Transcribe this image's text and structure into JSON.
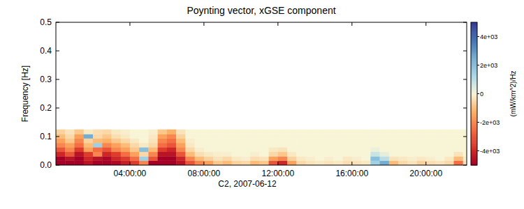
{
  "chart_data": {
    "type": "heatmap",
    "title": "Poynting vector, xGSE component",
    "x_label": "C2, 2007-06-12",
    "y_label": "Frequency [Hz]",
    "xlim": [
      0,
      22.2
    ],
    "xticks": [
      {
        "value": 4,
        "label": "04:00:00"
      },
      {
        "value": 8,
        "label": "08:00:00"
      },
      {
        "value": 12,
        "label": "12:00:00"
      },
      {
        "value": 16,
        "label": "16:00:00"
      },
      {
        "value": 20,
        "label": "20:00:00"
      }
    ],
    "ylim": [
      0,
      0.5
    ],
    "yticks": [
      {
        "value": 0,
        "label": "0.0"
      },
      0.1,
      0.2,
      0.3,
      0.4,
      0.5
    ],
    "cells": {
      "x_edges": [
        0,
        0.5,
        1,
        1.5,
        2,
        2.5,
        3,
        3.5,
        4,
        4.5,
        5,
        5.5,
        6,
        6.5,
        7,
        7.5,
        8,
        8.5,
        9,
        9.5,
        10,
        10.5,
        11,
        11.5,
        12,
        12.5,
        13,
        13.5,
        14,
        14.5,
        15,
        15.5,
        16,
        16.5,
        17,
        17.5,
        18,
        18.5,
        19,
        19.5,
        20,
        20.5,
        21,
        21.5,
        22,
        22.2
      ],
      "y_edges": [
        0,
        0.016,
        0.031,
        0.047,
        0.063,
        0.078,
        0.094,
        0.109,
        0.125
      ],
      "values": [
        [
          -5000,
          -5000,
          -5000,
          -4500,
          -5000,
          -5000,
          -4800,
          -4200,
          -3500,
          -2000,
          -5000,
          -5000,
          -5000,
          -4500,
          -3000,
          -2000,
          -1500,
          -800,
          -1000,
          -600,
          -500,
          -1000,
          -800,
          -3000,
          -4000,
          -1500,
          -500,
          -300,
          -200,
          -300,
          -200,
          -400,
          -300,
          -200,
          1500,
          2500,
          -1000,
          -500,
          -300,
          -600,
          -400,
          -300,
          -500,
          -2500,
          -300
        ],
        [
          -5000,
          -4500,
          -5000,
          -4000,
          -4500,
          -4800,
          -4000,
          -3500,
          -2500,
          1500,
          -3000,
          -5000,
          -5000,
          -4000,
          -2000,
          -1000,
          -600,
          -300,
          -500,
          -200,
          -100,
          -400,
          -300,
          -1500,
          -2000,
          -600,
          -200,
          -100,
          0,
          -100,
          0,
          -200,
          -100,
          0,
          2000,
          1000,
          -300,
          -200,
          -100,
          -200,
          -100,
          0,
          -200,
          -1000,
          -100
        ],
        [
          -4000,
          -3000,
          -4500,
          -3500,
          -2000,
          -4000,
          -3500,
          -2500,
          -1500,
          -500,
          -2000,
          -4500,
          -4500,
          -3000,
          -1000,
          -400,
          -200,
          -100,
          -100,
          0,
          0,
          -100,
          0,
          -500,
          -800,
          -200,
          0,
          0,
          0,
          0,
          0,
          0,
          0,
          0,
          800,
          300,
          0,
          0,
          0,
          0,
          0,
          0,
          0,
          -300,
          0
        ],
        [
          -3000,
          -2000,
          -3500,
          -1500,
          -2500,
          -3000,
          -2000,
          -1500,
          -800,
          2000,
          -1000,
          -3500,
          -4000,
          -2000,
          -500,
          -100,
          0,
          0,
          0,
          0,
          0,
          0,
          0,
          -200,
          -300,
          0,
          0,
          0,
          0,
          0,
          0,
          0,
          0,
          0,
          200,
          0,
          0,
          0,
          0,
          0,
          0,
          0,
          0,
          0,
          0
        ],
        [
          -2000,
          -1500,
          -2500,
          -1000,
          1500,
          -2000,
          -1500,
          -1000,
          -500,
          -200,
          -500,
          -2500,
          -3000,
          -1500,
          -200,
          0,
          0,
          0,
          0,
          0,
          0,
          0,
          0,
          0,
          0,
          0,
          0,
          0,
          0,
          0,
          0,
          0,
          0,
          0,
          0,
          0,
          0,
          0,
          0,
          0,
          0,
          0,
          0,
          0,
          0
        ],
        [
          -1500,
          -800,
          -2000,
          -600,
          -1000,
          -1200,
          -800,
          -500,
          -200,
          0,
          -300,
          -2000,
          -2500,
          -1000,
          -100,
          0,
          0,
          0,
          0,
          0,
          0,
          0,
          0,
          0,
          0,
          0,
          0,
          0,
          0,
          0,
          0,
          0,
          0,
          0,
          0,
          0,
          0,
          0,
          0,
          0,
          0,
          0,
          0,
          0,
          0
        ],
        [
          -1000,
          -500,
          -1500,
          2500,
          -500,
          -800,
          -400,
          -200,
          0,
          0,
          -200,
          -1500,
          -2000,
          -600,
          0,
          0,
          0,
          0,
          0,
          0,
          0,
          0,
          0,
          0,
          0,
          0,
          0,
          0,
          0,
          0,
          0,
          0,
          0,
          0,
          0,
          0,
          0,
          0,
          0,
          0,
          0,
          0,
          0,
          0,
          0
        ],
        [
          -600,
          -300,
          -800,
          -200,
          -400,
          -500,
          -200,
          -100,
          0,
          0,
          -100,
          -800,
          -1200,
          -300,
          0,
          0,
          0,
          0,
          0,
          0,
          0,
          0,
          0,
          0,
          0,
          0,
          0,
          0,
          0,
          0,
          0,
          0,
          0,
          0,
          0,
          0,
          0,
          0,
          0,
          0,
          0,
          0,
          0,
          0,
          0
        ]
      ]
    },
    "colorbar": {
      "lim": [
        -5000,
        5000
      ],
      "ticks": [
        {
          "value": 4000,
          "label": "4e+03"
        },
        {
          "value": 2000,
          "label": "2e+03"
        },
        0,
        {
          "value": -2000,
          "label": "-2e+03"
        },
        {
          "value": -4000,
          "label": "-4e+03"
        }
      ],
      "label": "(mW/km^2)/Hz"
    }
  }
}
